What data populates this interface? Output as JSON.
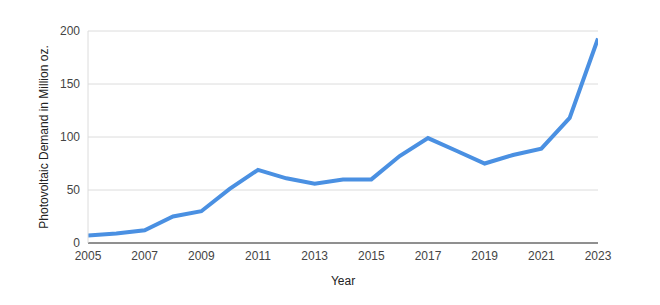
{
  "chart_data": {
    "type": "line",
    "x_label": "Year",
    "y_label": "Photovoltaic Demand in Million oz.",
    "x": [
      2005,
      2006,
      2007,
      2008,
      2009,
      2010,
      2011,
      2012,
      2013,
      2014,
      2015,
      2016,
      2017,
      2018,
      2019,
      2020,
      2021,
      2022,
      2023
    ],
    "values": [
      7,
      9,
      12,
      25,
      30,
      51,
      69,
      61,
      56,
      60,
      60,
      82,
      99,
      87,
      75,
      83,
      89,
      118,
      193
    ],
    "color": "#4a90e2",
    "xlim": [
      2005,
      2023
    ],
    "xticks": [
      2005,
      2007,
      2009,
      2011,
      2013,
      2015,
      2017,
      2019,
      2021,
      2023
    ],
    "ylim": [
      0,
      200
    ],
    "yticks": [
      0,
      50,
      100,
      150,
      200
    ],
    "grid": true
  }
}
